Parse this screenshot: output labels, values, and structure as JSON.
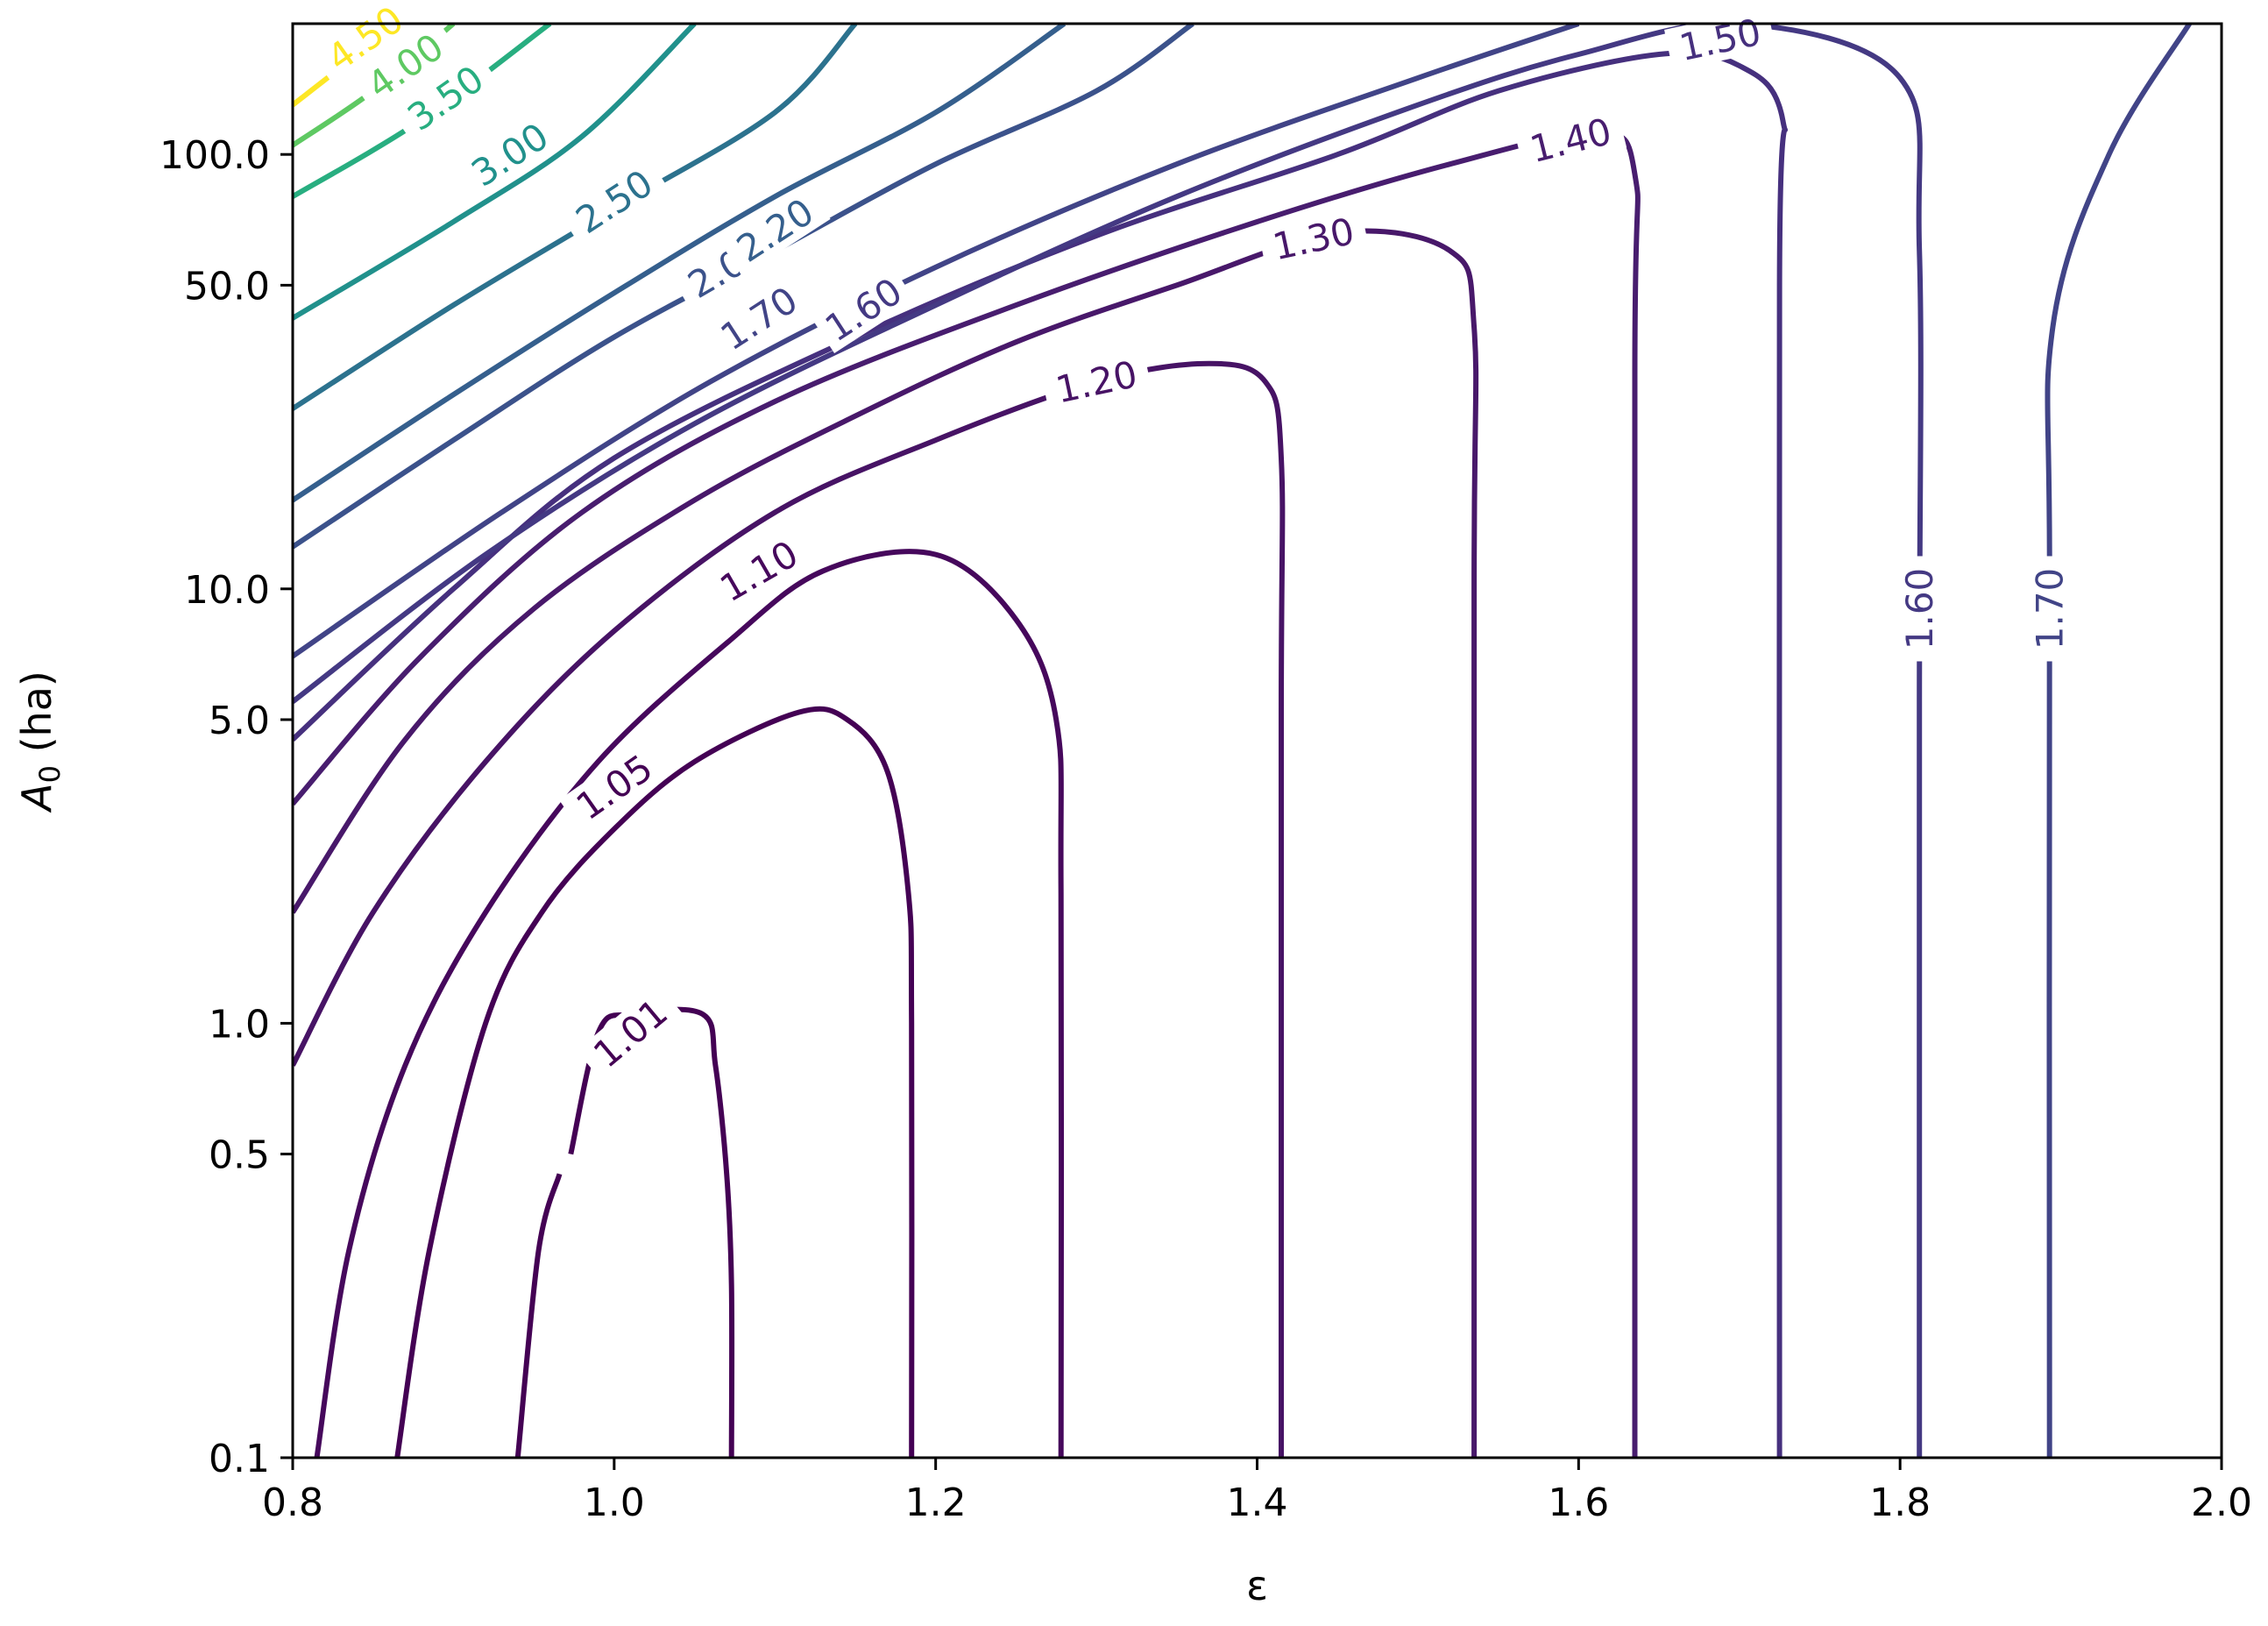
{
  "chart_data": {
    "type": "contour",
    "title": "",
    "xlabel": "ε",
    "ylabel": {
      "main": "A",
      "sub": "0",
      "rest": " (ha)"
    },
    "xlim": [
      0.8,
      2.0
    ],
    "ylim": [
      0.1,
      200
    ],
    "yscale": "log",
    "grid": false,
    "xticks": [
      0.8,
      1.0,
      1.2,
      1.4,
      1.6,
      1.8,
      2.0
    ],
    "xtick_labels": [
      "0.8",
      "1.0",
      "1.2",
      "1.4",
      "1.6",
      "1.8",
      "2.0"
    ],
    "yticks": [
      0.1,
      0.5,
      1.0,
      5.0,
      10.0,
      50.0,
      100.0
    ],
    "ytick_labels": [
      "0.1",
      "0.5",
      "1.0",
      "5.0",
      "10.0",
      "50.0",
      "100.0"
    ],
    "colormap": "viridis",
    "levels": [
      {
        "level": 1.01,
        "label": "1.01",
        "color": "#440154",
        "points": [
          [
            0.973,
            0.5
          ],
          [
            0.99,
            0.95
          ],
          [
            1.01,
            1.05
          ],
          [
            1.055,
            1.05
          ],
          [
            1.063,
            0.8
          ],
          [
            1.07,
            0.45
          ],
          [
            1.073,
            0.25
          ],
          [
            1.073,
            0.1
          ]
        ],
        "left_branch": [
          [
            0.94,
            0.1
          ],
          [
            0.953,
            0.3
          ],
          [
            0.966,
            0.45
          ]
        ]
      },
      {
        "level": 1.05,
        "label": "1.05",
        "color": "#440154",
        "points": [
          [
            0.865,
            0.1
          ],
          [
            0.885,
            0.3
          ],
          [
            0.92,
            1.0
          ],
          [
            0.955,
            1.8
          ],
          [
            1.0,
            2.8
          ],
          [
            1.05,
            4.0
          ],
          [
            1.115,
            5.2
          ],
          [
            1.145,
            5.0
          ],
          [
            1.17,
            3.8
          ],
          [
            1.183,
            2.0
          ],
          [
            1.185,
            1.0
          ],
          [
            1.185,
            0.1
          ]
        ]
      },
      {
        "level": 1.1,
        "label": "1.10",
        "color": "#46085c",
        "points": [
          [
            0.815,
            0.1
          ],
          [
            0.835,
            0.3
          ],
          [
            0.87,
            0.8
          ],
          [
            0.92,
            1.8
          ],
          [
            0.99,
            4.0
          ],
          [
            1.07,
            7.5
          ],
          [
            1.13,
            11
          ],
          [
            1.2,
            12
          ],
          [
            1.25,
            8.5
          ],
          [
            1.275,
            5.0
          ],
          [
            1.278,
            2.0
          ],
          [
            1.278,
            0.1
          ]
        ]
      },
      {
        "level": 1.2,
        "label": "1.20",
        "color": "#471365",
        "points": [
          [
            0.8,
            0.8
          ],
          [
            0.85,
            1.8
          ],
          [
            0.92,
            4.0
          ],
          [
            1.0,
            8.0
          ],
          [
            1.1,
            15
          ],
          [
            1.2,
            22
          ],
          [
            1.3,
            30
          ],
          [
            1.37,
            33
          ],
          [
            1.405,
            30
          ],
          [
            1.415,
            20
          ],
          [
            1.415,
            5
          ],
          [
            1.415,
            0.1
          ]
        ]
      },
      {
        "level": 1.3,
        "label": "1.30",
        "color": "#48186a",
        "points": [
          [
            0.8,
            1.8
          ],
          [
            0.87,
            4.5
          ],
          [
            0.95,
            9.0
          ],
          [
            1.05,
            16
          ],
          [
            1.15,
            25
          ],
          [
            1.25,
            37
          ],
          [
            1.35,
            50
          ],
          [
            1.45,
            66
          ],
          [
            1.52,
            60
          ],
          [
            1.535,
            40
          ],
          [
            1.535,
            10
          ],
          [
            1.535,
            0.1
          ]
        ]
      },
      {
        "level": 1.4,
        "label": "1.40",
        "color": "#481d6f",
        "points": [
          [
            0.8,
            3.2
          ],
          [
            0.88,
            7.0
          ],
          [
            0.98,
            15
          ],
          [
            1.1,
            27
          ],
          [
            1.25,
            45
          ],
          [
            1.4,
            70
          ],
          [
            1.52,
            95
          ],
          [
            1.61,
            112
          ],
          [
            1.635,
            90
          ],
          [
            1.635,
            30
          ],
          [
            1.635,
            0.1
          ]
        ]
      },
      {
        "level": 1.5,
        "label": "1.50",
        "color": "#46307e",
        "points": [
          [
            0.8,
            4.5
          ],
          [
            0.9,
            10
          ],
          [
            1.0,
            20
          ],
          [
            1.15,
            38
          ],
          [
            1.3,
            65
          ],
          [
            1.45,
            100
          ],
          [
            1.55,
            140
          ],
          [
            1.65,
            170
          ],
          [
            1.7,
            160
          ],
          [
            1.727,
            120
          ],
          [
            1.725,
            50
          ],
          [
            1.725,
            0.1
          ]
        ]
      },
      {
        "level": 1.6,
        "label": "1.60",
        "color": "#443983",
        "points": [
          [
            0.8,
            5.5
          ],
          [
            0.92,
            12
          ],
          [
            1.05,
            24
          ],
          [
            1.2,
            45
          ],
          [
            1.35,
            80
          ],
          [
            1.5,
            130
          ],
          [
            1.6,
            170
          ],
          [
            1.7,
            200
          ],
          [
            1.8,
            150
          ],
          [
            1.812,
            60
          ],
          [
            1.812,
            5.5
          ],
          [
            1.812,
            0.1
          ]
        ]
      },
      {
        "level": 1.7,
        "label": "1.70",
        "color": "#414487",
        "points": [
          [
            0.8,
            7.0
          ],
          [
            0.93,
            15
          ],
          [
            1.06,
            30
          ],
          [
            1.2,
            55
          ],
          [
            1.35,
            95
          ],
          [
            1.5,
            150
          ],
          [
            1.6,
            200
          ]
        ],
        "second_branch": [
          [
            1.98,
            200
          ],
          [
            1.93,
            100
          ],
          [
            1.895,
            40
          ],
          [
            1.893,
            10
          ],
          [
            1.893,
            0.1
          ]
        ]
      },
      {
        "level": 2.0,
        "label": "2.00",
        "color": "#3b528b",
        "points": [
          [
            0.8,
            12.5
          ],
          [
            0.9,
            22
          ],
          [
            1.0,
            38
          ],
          [
            1.1,
            60
          ],
          [
            1.2,
            95
          ],
          [
            1.3,
            140
          ],
          [
            1.36,
            200
          ]
        ]
      },
      {
        "level": 2.2,
        "label": "2.20",
        "color": "#355f8d",
        "points": [
          [
            0.8,
            16
          ],
          [
            0.9,
            28
          ],
          [
            1.0,
            48
          ],
          [
            1.1,
            80
          ],
          [
            1.2,
            125
          ],
          [
            1.28,
            200
          ]
        ]
      },
      {
        "level": 2.5,
        "label": "2.50",
        "color": "#2c728e",
        "points": [
          [
            0.8,
            26
          ],
          [
            0.9,
            45
          ],
          [
            1.0,
            75
          ],
          [
            1.1,
            125
          ],
          [
            1.15,
            200
          ]
        ]
      },
      {
        "level": 3.0,
        "label": "3.00",
        "color": "#21918c",
        "points": [
          [
            0.8,
            42
          ],
          [
            0.9,
            70
          ],
          [
            0.98,
            110
          ],
          [
            1.05,
            200
          ]
        ]
      },
      {
        "level": 3.5,
        "label": "3.50",
        "color": "#28ae80",
        "points": [
          [
            0.8,
            80
          ],
          [
            0.88,
            120
          ],
          [
            0.96,
            200
          ]
        ]
      },
      {
        "level": 4.0,
        "label": "4.00",
        "color": "#5ec962",
        "points": [
          [
            0.8,
            105
          ],
          [
            0.85,
            140
          ],
          [
            0.9,
            200
          ]
        ]
      },
      {
        "level": 4.5,
        "label": "4.50",
        "color": "#fde725",
        "points": [
          [
            0.8,
            130
          ],
          [
            0.84,
            170
          ],
          [
            0.86,
            200
          ]
        ]
      }
    ]
  }
}
